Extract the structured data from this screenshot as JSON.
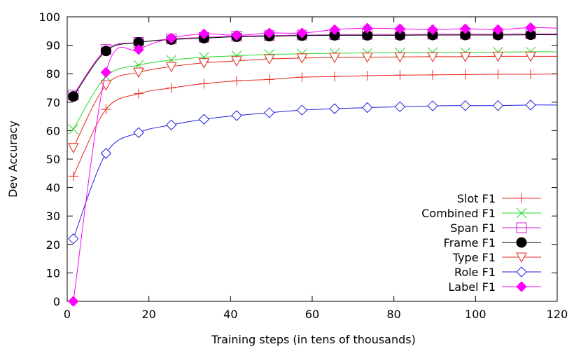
{
  "chart_data": {
    "type": "line",
    "xlabel": "Training steps (in tens of thousands)",
    "ylabel": "Dev Accuracy",
    "xlim": [
      0,
      120
    ],
    "ylim": [
      0,
      100
    ],
    "x_ticks": [
      0,
      20,
      40,
      60,
      80,
      100,
      120
    ],
    "y_ticks": [
      0,
      10,
      20,
      30,
      40,
      50,
      60,
      70,
      80,
      90,
      100
    ],
    "grid": false,
    "legend_position": "bottom-right",
    "series": [
      {
        "name": "Slot F1",
        "color": "#e8271f",
        "marker": "plus",
        "points": [
          [
            1.5,
            44
          ],
          [
            9.5,
            67.5
          ],
          [
            17.5,
            73
          ],
          [
            25.5,
            75
          ],
          [
            33.5,
            76.5
          ],
          [
            41.5,
            77.5
          ],
          [
            49.5,
            78
          ],
          [
            57.5,
            78.8
          ],
          [
            65.5,
            79
          ],
          [
            73.5,
            79.3
          ],
          [
            81.5,
            79.5
          ],
          [
            89.5,
            79.6
          ],
          [
            97.5,
            79.7
          ],
          [
            105.5,
            79.8
          ],
          [
            113.5,
            79.8
          ],
          [
            120,
            79.9
          ]
        ]
      },
      {
        "name": "Combined F1",
        "color": "#26d826",
        "marker": "x",
        "points": [
          [
            1.5,
            60.5
          ],
          [
            9.5,
            79
          ],
          [
            17.5,
            83
          ],
          [
            25.5,
            84.8
          ],
          [
            33.5,
            85.8
          ],
          [
            41.5,
            86.3
          ],
          [
            49.5,
            86.8
          ],
          [
            57.5,
            87
          ],
          [
            65.5,
            87.2
          ],
          [
            73.5,
            87.3
          ],
          [
            81.5,
            87.4
          ],
          [
            89.5,
            87.5
          ],
          [
            97.5,
            87.5
          ],
          [
            105.5,
            87.6
          ],
          [
            113.5,
            87.7
          ],
          [
            120,
            87.7
          ]
        ]
      },
      {
        "name": "Span F1",
        "color": "#d61fd6",
        "marker": "square",
        "points": [
          [
            1.5,
            72.5
          ],
          [
            9.5,
            88.5
          ],
          [
            17.5,
            91
          ],
          [
            25.5,
            92.2
          ],
          [
            33.5,
            92.8
          ],
          [
            41.5,
            93.2
          ],
          [
            49.5,
            93.4
          ],
          [
            57.5,
            93.6
          ],
          [
            65.5,
            93.7
          ],
          [
            73.5,
            93.8
          ],
          [
            81.5,
            93.8
          ],
          [
            89.5,
            93.9
          ],
          [
            97.5,
            93.9
          ],
          [
            105.5,
            93.9
          ],
          [
            113.5,
            94
          ],
          [
            120,
            94
          ]
        ]
      },
      {
        "name": "Frame F1",
        "color": "#000000",
        "marker": "circle",
        "points": [
          [
            1.5,
            72
          ],
          [
            9.5,
            88
          ],
          [
            17.5,
            91
          ],
          [
            25.5,
            92
          ],
          [
            33.5,
            92.5
          ],
          [
            41.5,
            93
          ],
          [
            49.5,
            93.2
          ],
          [
            57.5,
            93.4
          ],
          [
            65.5,
            93.5
          ],
          [
            73.5,
            93.5
          ],
          [
            81.5,
            93.5
          ],
          [
            89.5,
            93.6
          ],
          [
            97.5,
            93.6
          ],
          [
            105.5,
            93.6
          ],
          [
            113.5,
            93.7
          ],
          [
            120,
            93.7
          ]
        ]
      },
      {
        "name": "Type F1",
        "color": "#e8271f",
        "marker": "triangle-down",
        "points": [
          [
            1.5,
            54
          ],
          [
            9.5,
            76
          ],
          [
            17.5,
            80.5
          ],
          [
            25.5,
            82.5
          ],
          [
            33.5,
            83.8
          ],
          [
            41.5,
            84.5
          ],
          [
            49.5,
            85.2
          ],
          [
            57.5,
            85.5
          ],
          [
            65.5,
            85.7
          ],
          [
            73.5,
            85.8
          ],
          [
            81.5,
            85.9
          ],
          [
            89.5,
            86
          ],
          [
            97.5,
            86
          ],
          [
            105.5,
            86.1
          ],
          [
            113.5,
            86.1
          ],
          [
            120,
            86.1
          ]
        ]
      },
      {
        "name": "Role F1",
        "color": "#1f1fe0",
        "marker": "diamond",
        "points": [
          [
            1.5,
            22
          ],
          [
            9.5,
            52
          ],
          [
            17.5,
            59.3
          ],
          [
            25.5,
            62
          ],
          [
            33.5,
            64
          ],
          [
            41.5,
            65.3
          ],
          [
            49.5,
            66.3
          ],
          [
            57.5,
            67.2
          ],
          [
            65.5,
            67.7
          ],
          [
            73.5,
            68.1
          ],
          [
            81.5,
            68.4
          ],
          [
            89.5,
            68.7
          ],
          [
            97.5,
            68.8
          ],
          [
            105.5,
            68.8
          ],
          [
            113.5,
            69
          ],
          [
            120,
            69
          ]
        ]
      },
      {
        "name": "Label F1",
        "color": "#ff00ff",
        "marker": "diamond-filled",
        "points": [
          [
            1.5,
            0
          ],
          [
            9.5,
            80.5
          ],
          [
            17.5,
            88.5
          ],
          [
            25.5,
            92.5
          ],
          [
            33.5,
            94
          ],
          [
            41.5,
            93.5
          ],
          [
            49.5,
            94.3
          ],
          [
            57.5,
            94.3
          ],
          [
            65.5,
            95.5
          ],
          [
            73.5,
            96
          ],
          [
            81.5,
            95.8
          ],
          [
            89.5,
            95.5
          ],
          [
            97.5,
            95.8
          ],
          [
            105.5,
            95.5
          ],
          [
            113.5,
            96.2
          ],
          [
            120,
            96
          ]
        ]
      }
    ]
  }
}
